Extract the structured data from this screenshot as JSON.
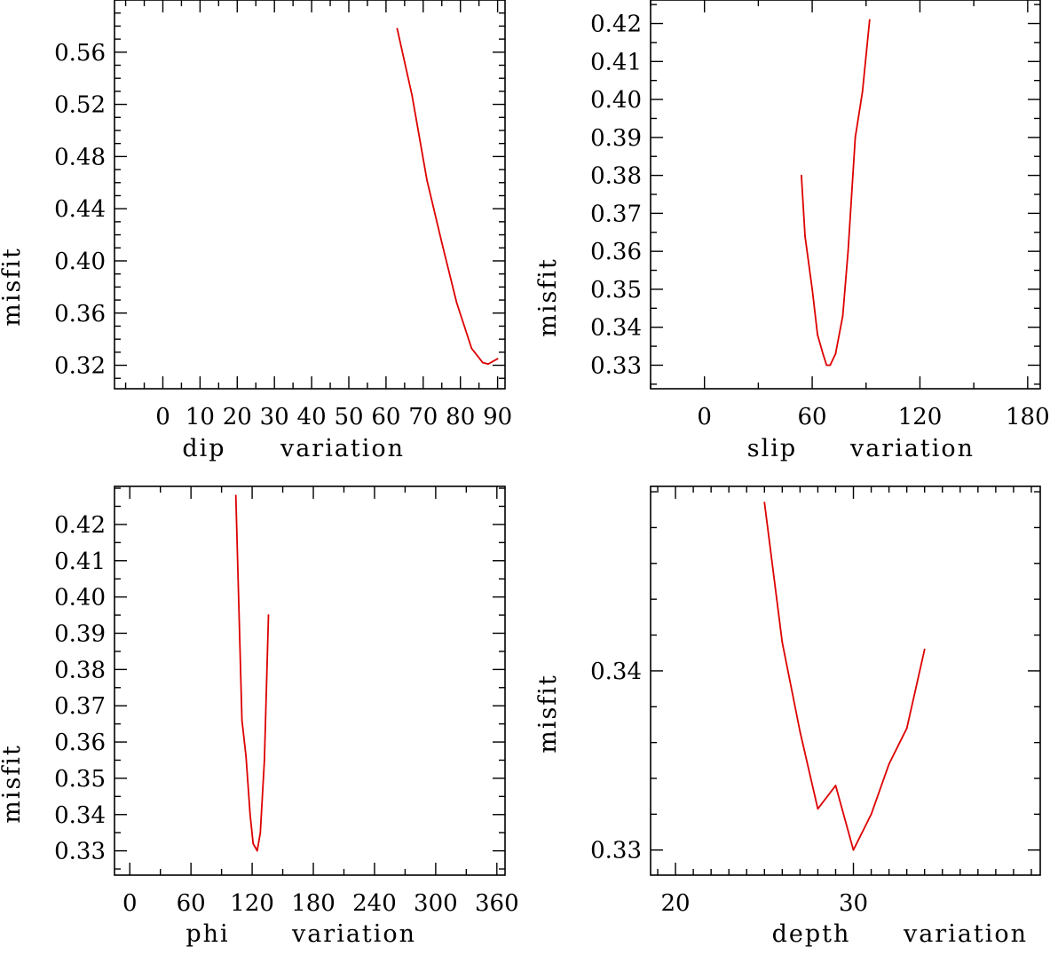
{
  "line_color": "#dd0000",
  "chart_data": [
    {
      "type": "line",
      "xlabel_left": "dip",
      "xlabel_right": "variation",
      "ylabel": "misfit",
      "xlim": [
        -13,
        92
      ],
      "ylim": [
        0.302,
        0.6
      ],
      "xticks": [
        0,
        10,
        20,
        30,
        40,
        50,
        60,
        70,
        80,
        90
      ],
      "xtick_labels": [
        "0",
        "10",
        "20",
        "30",
        "40",
        "50",
        "60",
        "70",
        "80",
        "90"
      ],
      "xminor": 5,
      "yticks": [
        0.32,
        0.36,
        0.4,
        0.44,
        0.48,
        0.52,
        0.56
      ],
      "ytick_labels": [
        "0.32",
        "0.36",
        "0.40",
        "0.44",
        "0.48",
        "0.52",
        "0.56"
      ],
      "yminor": 0.01,
      "x": [
        63,
        67,
        71,
        75,
        79,
        83,
        86,
        87.5,
        90
      ],
      "y": [
        0.578,
        0.527,
        0.462,
        0.414,
        0.368,
        0.333,
        0.322,
        0.321,
        0.325
      ]
    },
    {
      "type": "line",
      "xlabel_left": "slip",
      "xlabel_right": "variation",
      "ylabel": "misfit",
      "xlim": [
        -30,
        187
      ],
      "ylim": [
        0.3238,
        0.4262
      ],
      "xticks": [
        0,
        60,
        120,
        180
      ],
      "xtick_labels": [
        "0",
        "60",
        "120",
        "180"
      ],
      "xminor": 30,
      "yticks": [
        0.33,
        0.34,
        0.35,
        0.36,
        0.37,
        0.38,
        0.39,
        0.4,
        0.41,
        0.42
      ],
      "ytick_labels": [
        "0.33",
        "0.34",
        "0.35",
        "0.36",
        "0.37",
        "0.38",
        "0.39",
        "0.40",
        "0.41",
        "0.42"
      ],
      "yminor": 0.005,
      "x": [
        54,
        56,
        60,
        63,
        66,
        68,
        70,
        73,
        77,
        80,
        84,
        88,
        92
      ],
      "y": [
        0.38,
        0.364,
        0.35,
        0.338,
        0.333,
        0.33,
        0.33,
        0.333,
        0.343,
        0.36,
        0.39,
        0.402,
        0.421
      ]
    },
    {
      "type": "line",
      "xlabel_left": "phi",
      "xlabel_right": "variation",
      "ylabel": "misfit",
      "xlim": [
        -15,
        368
      ],
      "ylim": [
        0.3233,
        0.4305
      ],
      "xticks": [
        0,
        60,
        120,
        180,
        240,
        300,
        360
      ],
      "xtick_labels": [
        "0",
        "60",
        "120",
        "180",
        "240",
        "300",
        "360"
      ],
      "xminor": 30,
      "yticks": [
        0.33,
        0.34,
        0.35,
        0.36,
        0.37,
        0.38,
        0.39,
        0.4,
        0.41,
        0.42
      ],
      "ytick_labels": [
        "0.33",
        "0.34",
        "0.35",
        "0.36",
        "0.37",
        "0.38",
        "0.39",
        "0.40",
        "0.41",
        "0.42"
      ],
      "yminor": 0.005,
      "x": [
        104,
        110,
        114,
        118,
        121,
        123,
        125,
        128,
        132,
        136
      ],
      "y": [
        0.428,
        0.366,
        0.356,
        0.34,
        0.332,
        0.331,
        0.33,
        0.335,
        0.355,
        0.395
      ]
    },
    {
      "type": "line",
      "xlabel_left": "depth",
      "xlabel_right": "variation",
      "ylabel": "misfit",
      "xlim": [
        18.6,
        40.5
      ],
      "ylim": [
        0.3286,
        0.3503
      ],
      "xticks": [
        20,
        30
      ],
      "xtick_labels": [
        "20",
        "30"
      ],
      "xminor": 1,
      "yticks": [
        0.33,
        0.34
      ],
      "ytick_labels": [
        "0.33",
        "0.34"
      ],
      "yminor": 0.002,
      "x": [
        25,
        26,
        27,
        28,
        29,
        30,
        31,
        32,
        33,
        34
      ],
      "y": [
        0.3494,
        0.3416,
        0.3366,
        0.3323,
        0.3336,
        0.33,
        0.332,
        0.3348,
        0.3368,
        0.3412
      ]
    }
  ]
}
